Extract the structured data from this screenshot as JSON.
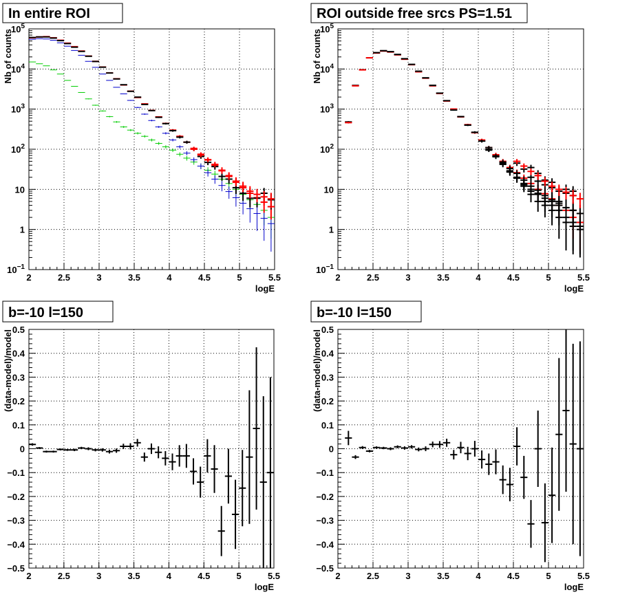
{
  "colors": {
    "black": "#000000",
    "red": "#ff0000",
    "blue": "#0000cc",
    "green": "#00cc00"
  },
  "chart_data": [
    {
      "type": "scatter",
      "title": "In entire ROI",
      "xlabel": "logE",
      "ylabel": "Nb of counts",
      "xlim": [
        2,
        5.5
      ],
      "ylim": [
        0.1,
        100000
      ],
      "yscale": "log",
      "grid": true,
      "xticks": [
        "2",
        "2.5",
        "3",
        "3.5",
        "4",
        "4.5",
        "5",
        "5.5"
      ],
      "yticks": [
        "10^-1",
        "1",
        "10",
        "10^2",
        "10^3",
        "10^4",
        "10^5"
      ],
      "series": [
        {
          "color": "#00cc00",
          "x": [
            2.05,
            2.15,
            2.25,
            2.35,
            2.45,
            2.55,
            2.65,
            2.75,
            2.85,
            2.95,
            3.05,
            3.15,
            3.25,
            3.35,
            3.45,
            3.55,
            3.65,
            3.75,
            3.85,
            3.95,
            4.05,
            4.15,
            4.25,
            4.35,
            4.45,
            4.55,
            4.65,
            4.75,
            4.85,
            4.95,
            5.05,
            5.15,
            5.25,
            5.35,
            5.45
          ],
          "y": [
            15000,
            13500,
            12000,
            9500,
            7500,
            5200,
            3700,
            2600,
            1800,
            1250,
            900,
            650,
            480,
            360,
            300,
            250,
            210,
            170,
            140,
            115,
            95,
            75,
            60,
            48,
            38,
            30,
            24,
            18,
            14,
            10,
            7.5,
            5.5,
            4.2,
            3.0,
            2.0
          ]
        },
        {
          "color": "#0000cc",
          "x": [
            2.05,
            2.15,
            2.25,
            2.35,
            2.45,
            2.55,
            2.65,
            2.75,
            2.85,
            2.95,
            3.05,
            3.15,
            3.25,
            3.35,
            3.45,
            3.55,
            3.65,
            3.75,
            3.85,
            3.95,
            4.05,
            4.15,
            4.25,
            4.35,
            4.45,
            4.55,
            4.65,
            4.75,
            4.85,
            4.95,
            5.05,
            5.15,
            5.25,
            5.35,
            5.45
          ],
          "y": [
            55000,
            57000,
            56000,
            52000,
            45000,
            37000,
            29000,
            22000,
            15500,
            11000,
            7500,
            5200,
            3500,
            2400,
            1650,
            1100,
            750,
            520,
            360,
            250,
            170,
            115,
            80,
            55,
            38,
            26,
            18,
            12.5,
            8.8,
            6.2,
            4.5,
            3.3,
            2.5,
            1.9,
            1.4
          ]
        },
        {
          "color": "#ff0000",
          "x": [
            2.05,
            2.15,
            2.25,
            2.35,
            2.45,
            2.55,
            2.65,
            2.75,
            2.85,
            2.95,
            3.05,
            3.15,
            3.25,
            3.35,
            3.45,
            3.55,
            3.65,
            3.75,
            3.85,
            3.95,
            4.05,
            4.15,
            4.25,
            4.35,
            4.45,
            4.55,
            4.65,
            4.75,
            4.85,
            4.95,
            5.05,
            5.15,
            5.25,
            5.35,
            5.45
          ],
          "y": [
            60000,
            63000,
            64000,
            60000,
            52000,
            44000,
            36000,
            28000,
            21000,
            15500,
            11200,
            8000,
            5700,
            4000,
            2800,
            1950,
            1350,
            930,
            640,
            440,
            300,
            210,
            150,
            105,
            75,
            54,
            40,
            29,
            21,
            15,
            11,
            8,
            6.2,
            4.8,
            3.7
          ]
        },
        {
          "color": "#000000",
          "x": [
            2.05,
            2.15,
            2.25,
            2.35,
            2.45,
            2.55,
            2.65,
            2.75,
            2.85,
            2.95,
            3.05,
            3.15,
            3.25,
            3.35,
            3.45,
            3.55,
            3.65,
            3.75,
            3.85,
            3.95,
            4.05,
            4.15,
            4.25,
            4.35,
            4.45,
            4.55,
            4.65,
            4.75,
            4.85,
            4.95,
            5.05,
            5.15,
            5.25,
            5.35,
            5.45
          ],
          "y": [
            61000,
            63000,
            63000,
            59000,
            51000,
            43000,
            35000,
            27500,
            20800,
            15400,
            11100,
            7950,
            5650,
            4050,
            2780,
            1990,
            1310,
            920,
            625,
            435,
            290,
            200,
            150,
            100,
            66,
            47,
            37,
            21,
            18,
            11,
            8,
            6,
            6,
            8,
            5.5
          ]
        },
        {
          "color": "#ff0000",
          "x": [
            4.35,
            4.45,
            4.55,
            4.65,
            4.75,
            4.85,
            4.95,
            5.05,
            5.15,
            5.25,
            5.35,
            5.45
          ],
          "y": [
            100,
            72,
            55,
            42,
            30,
            22,
            16,
            12,
            9,
            7.5,
            6.5,
            5.8
          ],
          "note": "red crosses"
        }
      ]
    },
    {
      "type": "scatter",
      "title": "ROI outside free srcs PS=1.51",
      "xlabel": "logE",
      "ylabel": "Nb of counts",
      "xlim": [
        2,
        5.5
      ],
      "ylim": [
        0.1,
        100000
      ],
      "yscale": "log",
      "grid": true,
      "xticks": [
        "2",
        "2.5",
        "3",
        "3.5",
        "4",
        "4.5",
        "5",
        "5.5"
      ],
      "yticks": [
        "10^-1",
        "1",
        "10",
        "10^2",
        "10^3",
        "10^4",
        "10^5"
      ],
      "series": [
        {
          "color": "#000000",
          "x": [
            2.15,
            2.25,
            2.35,
            2.45,
            2.55,
            2.65,
            2.75,
            2.85,
            2.95,
            3.05,
            3.15,
            3.25,
            3.35,
            3.45,
            3.55,
            3.65,
            3.75,
            3.85,
            3.95,
            4.05,
            4.15,
            4.25,
            4.35,
            4.45,
            4.55,
            4.65,
            4.75,
            4.85,
            4.95,
            5.05,
            5.15,
            5.25,
            5.35,
            5.45
          ],
          "y": [
            480,
            3900,
            9600,
            19000,
            25500,
            28500,
            27000,
            23000,
            18000,
            13000,
            8800,
            6000,
            3900,
            2500,
            1620,
            1000,
            650,
            400,
            260,
            160,
            100,
            65,
            42,
            28,
            19,
            12,
            7.5,
            5,
            4,
            3,
            2,
            1.5,
            1.2,
            1
          ]
        },
        {
          "color": "#ff0000",
          "x": [
            2.15,
            2.25,
            2.35,
            2.45,
            2.55,
            2.65,
            2.75,
            2.85,
            2.95,
            3.05,
            3.15,
            3.25,
            3.35,
            3.45,
            3.55,
            3.65,
            3.75,
            3.85,
            3.95,
            4.05,
            4.15,
            4.25,
            4.35,
            4.45,
            4.55,
            4.65,
            4.75,
            4.85,
            4.95,
            5.05,
            5.15,
            5.25,
            5.35,
            5.45
          ],
          "y": [
            460,
            3800,
            9500,
            19000,
            25000,
            28000,
            26500,
            22500,
            17500,
            12800,
            8500,
            5900,
            3800,
            2450,
            1590,
            1000,
            640,
            410,
            260,
            170,
            110,
            73,
            50,
            35,
            26,
            19,
            14,
            10,
            7.8,
            5.8,
            4,
            3,
            2,
            1.5
          ]
        },
        {
          "color": "#000000",
          "x": [
            2.55,
            2.65,
            2.75,
            2.85,
            2.95,
            3.05,
            3.15,
            3.25,
            3.35,
            3.45,
            3.55,
            3.65,
            3.75,
            3.85,
            3.95,
            4.05,
            4.15,
            4.25,
            4.35,
            4.45,
            4.55,
            4.65,
            4.75,
            4.85,
            4.95,
            5.05,
            5.15,
            5.25,
            5.35,
            5.45
          ],
          "y": [
            25500,
            28500,
            27000,
            23000,
            18000,
            13000,
            8800,
            6000,
            3900,
            2500,
            1620,
            950,
            650,
            400,
            265,
            160,
            110,
            68,
            45,
            29,
            20,
            14,
            10,
            7.5,
            5,
            4,
            3,
            2,
            1.5,
            1.2
          ]
        },
        {
          "color": "#000000",
          "x": [
            4.15,
            4.25,
            4.35,
            4.45,
            4.55,
            4.65,
            4.75,
            4.85,
            4.95,
            5.05,
            5.15,
            5.25,
            5.35
          ],
          "y": [
            95,
            68,
            48,
            33,
            25,
            17,
            12,
            9.5,
            7,
            5.5,
            4.5,
            3.5,
            3
          ]
        },
        {
          "color": "#000000",
          "x": [
            4.45,
            4.55,
            4.65,
            4.75,
            4.85,
            4.95,
            5.05,
            5.15,
            5.25,
            5.35,
            5.45
          ],
          "y": [
            27,
            19,
            13,
            9,
            8,
            6,
            5,
            4,
            3.5,
            3,
            2.5
          ]
        },
        {
          "color": "#000000",
          "x": [
            4.55,
            4.65,
            4.75,
            4.85,
            4.95,
            5.05,
            5.15,
            5.25,
            5.35
          ],
          "y": [
            45,
            32,
            20,
            16,
            13,
            11,
            9,
            8,
            7
          ]
        },
        {
          "color": "#000000",
          "x": [
            4.75,
            4.85,
            4.95,
            5.05,
            5.15,
            5.25,
            5.35
          ],
          "y": [
            35,
            25,
            17,
            15,
            5,
            10,
            9
          ]
        },
        {
          "color": "#ff0000",
          "x": [
            4.55,
            4.65,
            4.75,
            4.85,
            4.95,
            5.05,
            5.15,
            5.25,
            5.35,
            5.45
          ],
          "y": [
            50,
            38,
            28,
            22,
            16,
            12,
            10,
            8.5,
            7,
            5.8
          ]
        }
      ]
    },
    {
      "type": "scatter",
      "title": "b=-10 l=150",
      "xlabel": "logE",
      "ylabel": "(data-model)/model",
      "xlim": [
        2,
        5.5
      ],
      "ylim": [
        -0.5,
        0.5
      ],
      "grid": true,
      "xticks": [
        "2",
        "2.5",
        "3",
        "3.5",
        "4",
        "4.5",
        "5",
        "5.5"
      ],
      "yticks": [
        "−0.5",
        "−0.4",
        "−0.3",
        "−0.2",
        "−0.1",
        "0",
        "0.1",
        "0.2",
        "0.3",
        "0.4",
        "0.5"
      ],
      "series": [
        {
          "color": "#000000",
          "x": [
            2.05,
            2.15,
            2.25,
            2.35,
            2.45,
            2.55,
            2.65,
            2.75,
            2.85,
            2.95,
            3.05,
            3.15,
            3.25,
            3.35,
            3.45,
            3.55,
            3.65,
            3.75,
            3.85,
            3.95,
            4.05,
            4.15,
            4.25,
            4.35,
            4.45,
            4.55,
            4.65,
            4.75,
            4.85,
            4.95,
            5.05,
            5.15,
            5.25,
            5.35,
            5.45
          ],
          "y": [
            0.018,
            0.003,
            -0.012,
            -0.012,
            -0.003,
            -0.005,
            -0.005,
            0.003,
            0.0,
            -0.005,
            -0.005,
            -0.012,
            -0.008,
            0.01,
            0.01,
            0.025,
            -0.035,
            0.0,
            -0.015,
            -0.04,
            -0.055,
            -0.03,
            -0.03,
            -0.095,
            -0.14,
            -0.03,
            -0.085,
            -0.345,
            -0.115,
            -0.275,
            -0.165,
            -0.035,
            0.085,
            -0.14,
            -0.1
          ],
          "err": [
            0.005,
            0.004,
            0.004,
            0.004,
            0.004,
            0.004,
            0.005,
            0.005,
            0.006,
            0.006,
            0.007,
            0.008,
            0.009,
            0.011,
            0.013,
            0.016,
            0.019,
            0.022,
            0.025,
            0.03,
            0.035,
            0.045,
            0.05,
            0.055,
            0.065,
            0.07,
            0.1,
            0.105,
            0.115,
            0.145,
            0.16,
            0.28,
            0.34,
            0.36,
            0.4
          ]
        }
      ]
    },
    {
      "type": "scatter",
      "title": "b=-10 l=150",
      "xlabel": "logE",
      "ylabel": "(data-model)/model",
      "xlim": [
        2,
        5.5
      ],
      "ylim": [
        -0.5,
        0.5
      ],
      "grid": true,
      "xticks": [
        "2",
        "2.5",
        "3",
        "3.5",
        "4",
        "4.5",
        "5",
        "5.5"
      ],
      "yticks": [
        "−0.5",
        "−0.4",
        "−0.3",
        "−0.2",
        "−0.1",
        "0",
        "0.1",
        "0.2",
        "0.3",
        "0.4",
        "0.5"
      ],
      "series": [
        {
          "color": "#000000",
          "x": [
            2.15,
            2.25,
            2.35,
            2.45,
            2.55,
            2.65,
            2.75,
            2.85,
            2.95,
            3.05,
            3.15,
            3.25,
            3.35,
            3.45,
            3.55,
            3.65,
            3.75,
            3.85,
            3.95,
            4.05,
            4.15,
            4.25,
            4.35,
            4.45,
            4.55,
            4.65,
            4.75,
            4.85,
            4.95,
            5.05,
            5.15,
            5.25,
            5.35,
            5.45
          ],
          "y": [
            0.045,
            -0.035,
            0.005,
            -0.01,
            0.005,
            0.003,
            0.0,
            0.008,
            0.003,
            0.008,
            -0.003,
            0.0,
            0.018,
            0.018,
            0.025,
            -0.025,
            0.005,
            -0.02,
            0.0,
            -0.045,
            -0.065,
            -0.055,
            -0.13,
            -0.15,
            0.01,
            -0.12,
            -0.315,
            0.0,
            -0.31,
            -0.195,
            0.06,
            0.16,
            0.02,
            0.0
          ],
          "err": [
            0.03,
            0.008,
            0.006,
            0.005,
            0.005,
            0.005,
            0.006,
            0.006,
            0.007,
            0.007,
            0.008,
            0.01,
            0.012,
            0.014,
            0.017,
            0.02,
            0.024,
            0.028,
            0.033,
            0.038,
            0.045,
            0.052,
            0.06,
            0.07,
            0.08,
            0.09,
            0.1,
            0.16,
            0.165,
            0.2,
            0.32,
            0.34,
            0.42,
            0.45
          ]
        }
      ]
    }
  ]
}
